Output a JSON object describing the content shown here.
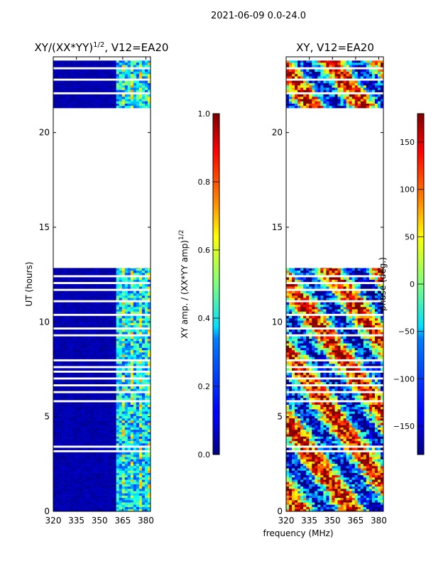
{
  "suptitle": "2021-06-09 0.0-24.0",
  "xlabel": "frequency (MHz)",
  "colors": {
    "frame": "#000000",
    "background": "#ffffff",
    "jet_low": "#00007f",
    "jet_high": "#7f0000"
  },
  "chart_data": [
    {
      "type": "heatmap",
      "title_prefix": "XY/(XX*YY)",
      "title_sup": "1/2",
      "title_suffix": ", V12=EA20",
      "xlabel": "frequency (MHz)",
      "ylabel": "UT (hours)",
      "xlim": [
        320,
        383
      ],
      "ylim": [
        0,
        24
      ],
      "xticks": [
        320,
        335,
        350,
        365,
        380
      ],
      "xtick_labels": [
        "320",
        "335",
        "350",
        "365",
        "380"
      ],
      "yticks": [
        0,
        5,
        10,
        15,
        20
      ],
      "ytick_labels": [
        "0",
        "5",
        "10",
        "15",
        "20"
      ],
      "data_bands_hours": [
        [
          0,
          12.85
        ],
        [
          21.3,
          23.8
        ]
      ],
      "colorbar": {
        "label_prefix": "XY amp. / (XX*YY amp)",
        "label_sup": "1/2",
        "range": [
          0.0,
          1.0
        ],
        "ticks": [
          0.0,
          0.2,
          0.4,
          0.6,
          0.8,
          1.0
        ],
        "tick_labels": [
          "0.0",
          "0.2",
          "0.4",
          "0.6",
          "0.8",
          "1.0"
        ]
      }
    },
    {
      "type": "heatmap",
      "title": "XY, V12=EA20",
      "xlabel": "frequency (MHz)",
      "xlim": [
        320,
        383
      ],
      "ylim": [
        0,
        24
      ],
      "xticks": [
        320,
        335,
        350,
        365,
        380
      ],
      "xtick_labels": [
        "320",
        "335",
        "350",
        "365",
        "380"
      ],
      "yticks": [
        0,
        5,
        10,
        15,
        20
      ],
      "ytick_labels": [
        "0",
        "5",
        "10",
        "15",
        "20"
      ],
      "data_bands_hours": [
        [
          0,
          12.85
        ],
        [
          21.3,
          23.8
        ]
      ],
      "colorbar": {
        "label": "phase (deg.)",
        "range": [
          -180,
          180
        ],
        "ticks": [
          -150,
          -100,
          -50,
          0,
          50,
          100,
          150
        ],
        "tick_labels": [
          "−150",
          "−100",
          "−50",
          "0",
          "50",
          "100",
          "150"
        ]
      }
    }
  ]
}
